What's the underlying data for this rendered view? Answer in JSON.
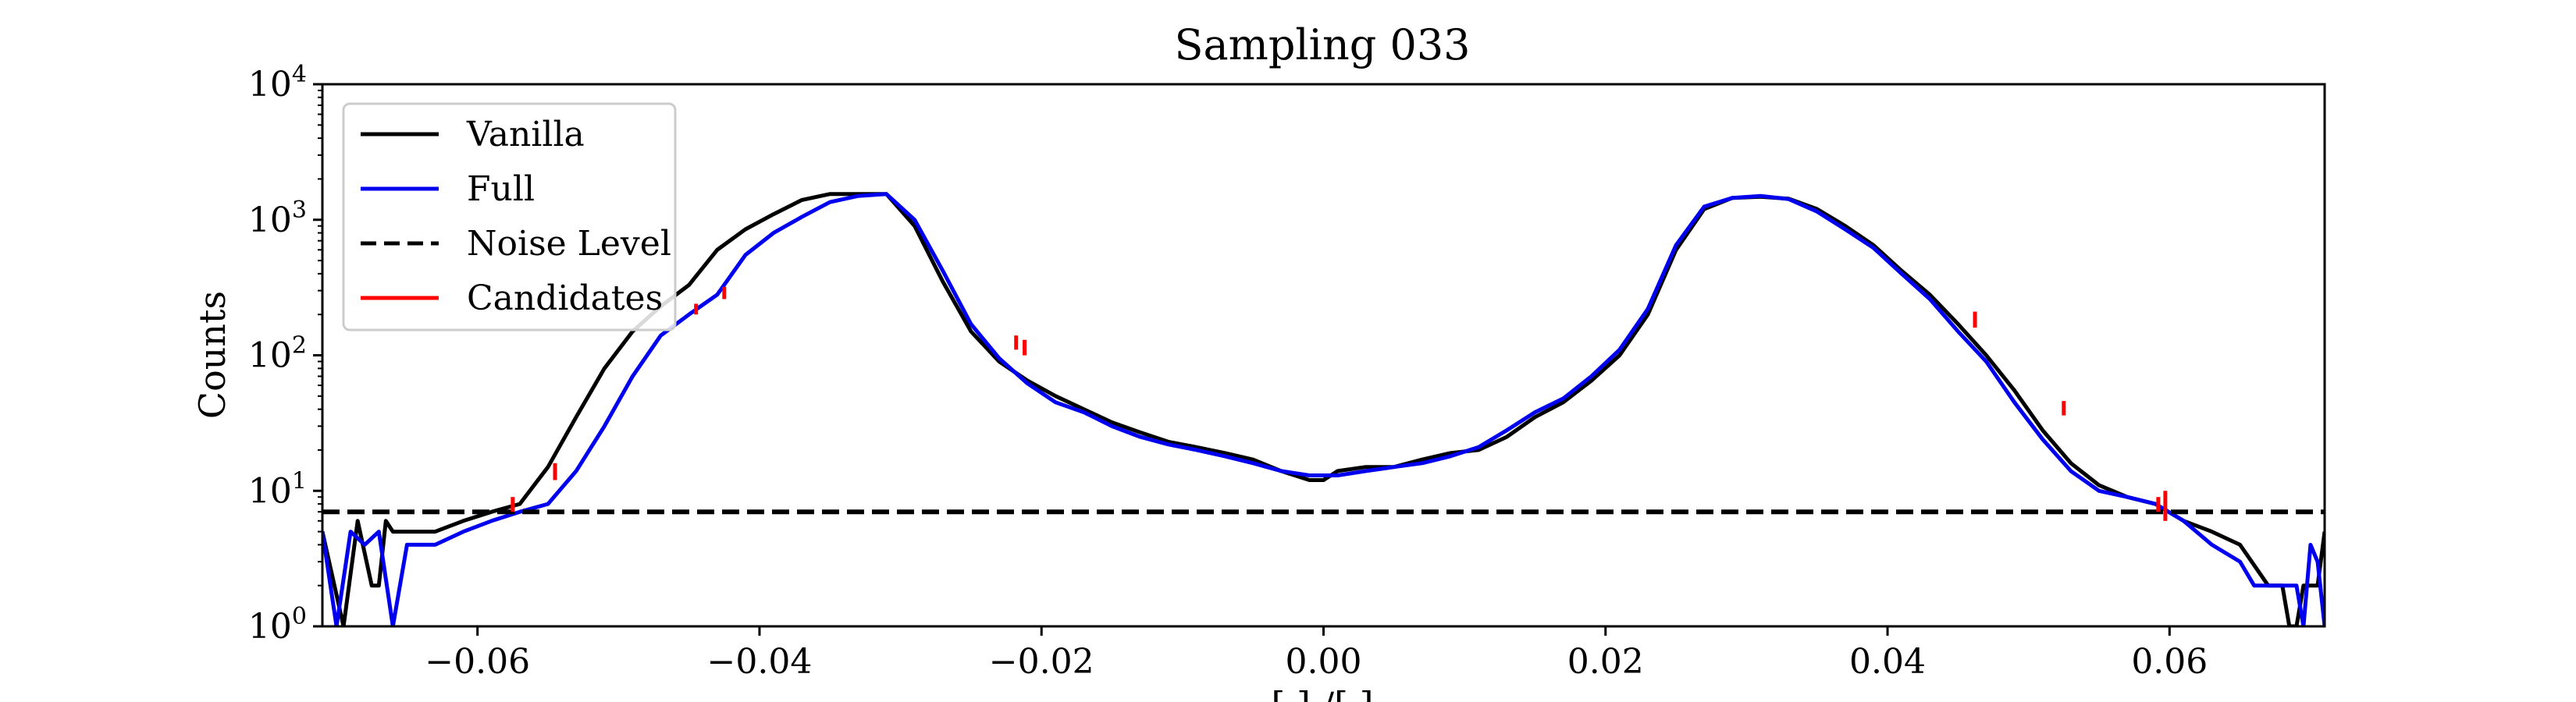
{
  "chart_data": {
    "type": "line",
    "title": "Sampling 033",
    "xlabel": "[ ]    /[    ]",
    "ylabel": "Counts",
    "xlim": [
      -0.071,
      0.071
    ],
    "ylim": [
      1,
      10000
    ],
    "yscale": "log",
    "grid": false,
    "legend_position": "top-left",
    "x_ticks": [
      -0.06,
      -0.04,
      -0.02,
      0.0,
      0.02,
      0.04,
      0.06
    ],
    "x_tick_labels": [
      "−0.06",
      "−0.04",
      "−0.02",
      "0.00",
      "0.02",
      "0.04",
      "0.06"
    ],
    "y_ticks": [
      1,
      10,
      100,
      1000,
      10000
    ],
    "y_tick_labels": [
      {
        "base": "10",
        "exp": "0"
      },
      {
        "base": "10",
        "exp": "1"
      },
      {
        "base": "10",
        "exp": "2"
      },
      {
        "base": "10",
        "exp": "3"
      },
      {
        "base": "10",
        "exp": "4"
      }
    ],
    "series": [
      {
        "name": "Vanilla",
        "color": "#000000",
        "style": "solid",
        "x": [
          -0.071,
          -0.0695,
          -0.0685,
          -0.0675,
          -0.067,
          -0.0665,
          -0.066,
          -0.065,
          -0.063,
          -0.061,
          -0.059,
          -0.057,
          -0.055,
          -0.053,
          -0.051,
          -0.049,
          -0.047,
          -0.045,
          -0.043,
          -0.041,
          -0.039,
          -0.037,
          -0.035,
          -0.033,
          -0.031,
          -0.029,
          -0.027,
          -0.025,
          -0.023,
          -0.021,
          -0.019,
          -0.017,
          -0.015,
          -0.013,
          -0.011,
          -0.009,
          -0.007,
          -0.005,
          -0.003,
          -0.001,
          0.0,
          0.001,
          0.003,
          0.005,
          0.007,
          0.009,
          0.011,
          0.013,
          0.015,
          0.017,
          0.019,
          0.021,
          0.023,
          0.025,
          0.027,
          0.029,
          0.031,
          0.033,
          0.035,
          0.037,
          0.039,
          0.041,
          0.043,
          0.045,
          0.047,
          0.049,
          0.051,
          0.053,
          0.055,
          0.057,
          0.059,
          0.061,
          0.063,
          0.065,
          0.067,
          0.068,
          0.0685,
          0.069,
          0.0695,
          0.0705,
          0.071
        ],
        "y": [
          5,
          1,
          6,
          2,
          2,
          6,
          5,
          5,
          5,
          6,
          7,
          8,
          15,
          35,
          80,
          150,
          230,
          330,
          600,
          850,
          1100,
          1400,
          1550,
          1550,
          1550,
          900,
          350,
          150,
          90,
          65,
          50,
          40,
          32,
          27,
          23,
          21,
          19,
          17,
          14,
          12,
          12,
          14,
          15,
          15,
          17,
          19,
          20,
          25,
          35,
          45,
          65,
          100,
          200,
          600,
          1200,
          1450,
          1480,
          1430,
          1200,
          900,
          650,
          420,
          280,
          170,
          100,
          55,
          28,
          16,
          11,
          9,
          8,
          6,
          5,
          4,
          2,
          2,
          1,
          1,
          2,
          2,
          5
        ]
      },
      {
        "name": "Full",
        "color": "#0000ee",
        "style": "solid",
        "x": [
          -0.071,
          -0.07,
          -0.069,
          -0.068,
          -0.067,
          -0.066,
          -0.065,
          -0.063,
          -0.061,
          -0.059,
          -0.057,
          -0.055,
          -0.053,
          -0.051,
          -0.049,
          -0.047,
          -0.045,
          -0.043,
          -0.041,
          -0.039,
          -0.037,
          -0.035,
          -0.033,
          -0.031,
          -0.029,
          -0.027,
          -0.025,
          -0.023,
          -0.021,
          -0.019,
          -0.017,
          -0.015,
          -0.013,
          -0.011,
          -0.009,
          -0.007,
          -0.005,
          -0.003,
          -0.001,
          0.001,
          0.003,
          0.005,
          0.007,
          0.009,
          0.011,
          0.013,
          0.015,
          0.017,
          0.019,
          0.021,
          0.023,
          0.025,
          0.027,
          0.029,
          0.031,
          0.033,
          0.035,
          0.037,
          0.039,
          0.041,
          0.043,
          0.045,
          0.047,
          0.049,
          0.051,
          0.053,
          0.055,
          0.057,
          0.059,
          0.061,
          0.063,
          0.065,
          0.066,
          0.067,
          0.068,
          0.069,
          0.0695,
          0.07,
          0.0705,
          0.071
        ],
        "y": [
          5,
          1,
          5,
          4,
          5,
          1,
          4,
          4,
          5,
          6,
          7,
          8,
          14,
          30,
          70,
          140,
          200,
          280,
          550,
          800,
          1050,
          1350,
          1500,
          1550,
          1000,
          420,
          170,
          95,
          62,
          45,
          38,
          30,
          25,
          22,
          20,
          18,
          16,
          14,
          13,
          13,
          14,
          15,
          16,
          18,
          21,
          28,
          38,
          48,
          70,
          110,
          220,
          650,
          1250,
          1450,
          1500,
          1420,
          1150,
          850,
          620,
          400,
          260,
          150,
          90,
          45,
          24,
          14,
          10,
          9,
          8,
          6,
          4,
          3,
          2,
          2,
          2,
          2,
          1,
          4,
          3,
          1
        ]
      },
      {
        "name": "Noise Level",
        "color": "#000000",
        "style": "dashed",
        "x": [
          -0.071,
          0.071
        ],
        "y": [
          7,
          7
        ]
      },
      {
        "name": "Candidates",
        "color": "#ff0000",
        "style": "solid",
        "x": [],
        "y": []
      }
    ],
    "candidates": [
      {
        "x": -0.0575,
        "y_range": [
          7,
          9
        ]
      },
      {
        "x": -0.0545,
        "y_range": [
          12,
          16
        ]
      },
      {
        "x": -0.0445,
        "y_range": [
          200,
          240
        ]
      },
      {
        "x": -0.0425,
        "y_range": [
          260,
          320
        ]
      },
      {
        "x": -0.0218,
        "y_range": [
          110,
          140
        ]
      },
      {
        "x": -0.0212,
        "y_range": [
          100,
          130
        ]
      },
      {
        "x": 0.0462,
        "y_range": [
          160,
          210
        ]
      },
      {
        "x": 0.0525,
        "y_range": [
          36,
          46
        ]
      },
      {
        "x": 0.0592,
        "y_range": [
          7,
          9
        ]
      },
      {
        "x": 0.0597,
        "y_range": [
          6,
          10
        ]
      }
    ]
  }
}
